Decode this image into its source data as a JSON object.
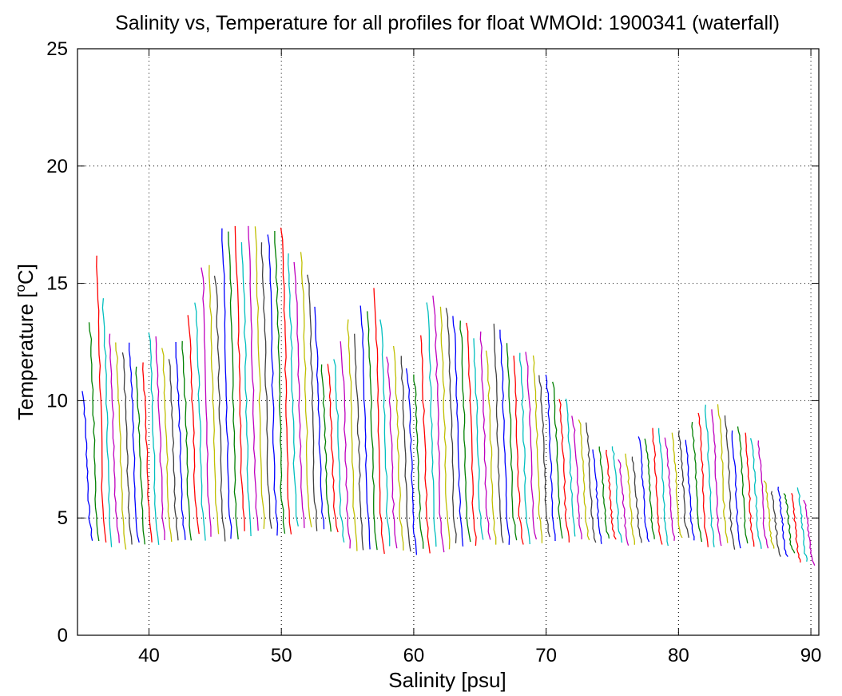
{
  "chart_data": {
    "type": "line",
    "title": "Salinity vs, Temperature for all profiles for float WMOId: 1900341 (waterfall)",
    "xlabel": "Salinity [psu]",
    "ylabel": "Temperature [",
    "ylabel_sup": "o",
    "ylabel_unit": "C]",
    "xlim": [
      34.6,
      90.6
    ],
    "ylim": [
      0,
      25
    ],
    "xticks": [
      40,
      50,
      60,
      70,
      80,
      90
    ],
    "yticks": [
      0,
      5,
      10,
      15,
      20,
      25
    ],
    "xtick_labels": [
      "40",
      "50",
      "60",
      "70",
      "80",
      "90"
    ],
    "ytick_labels": [
      "0",
      "5",
      "10",
      "15",
      "20",
      "25"
    ],
    "grid": true,
    "grid_style": "dotted",
    "series_colors": [
      "#0000ff",
      "#008000",
      "#ff0000",
      "#00bfbf",
      "#bf00bf",
      "#bfbf00",
      "#404040"
    ],
    "waterfall": {
      "first_profile_salinity": 35.0,
      "last_profile_salinity": 89.5,
      "profile_spacing": 0.5,
      "surface_temperature_envelope": [
        [
          35.0,
          11.0
        ],
        [
          36.0,
          17.0
        ],
        [
          37.0,
          13.5
        ],
        [
          38.0,
          13.0
        ],
        [
          39.0,
          12.0
        ],
        [
          40.0,
          13.0
        ],
        [
          41.0,
          13.0
        ],
        [
          42.0,
          12.5
        ],
        [
          43.0,
          14.0
        ],
        [
          44.0,
          16.5
        ],
        [
          45.0,
          16.5
        ],
        [
          46.0,
          18.2
        ],
        [
          47.0,
          17.5
        ],
        [
          48.0,
          17.5
        ],
        [
          49.0,
          17.5
        ],
        [
          50.0,
          17.5
        ],
        [
          51.0,
          17.0
        ],
        [
          52.0,
          16.0
        ],
        [
          53.0,
          12.5
        ],
        [
          54.0,
          12.0
        ],
        [
          55.0,
          13.5
        ],
        [
          56.0,
          14.5
        ],
        [
          57.0,
          15.5
        ],
        [
          58.0,
          12.5
        ],
        [
          59.0,
          12.5
        ],
        [
          60.0,
          12.0
        ],
        [
          61.0,
          15.0
        ],
        [
          62.0,
          15.0
        ],
        [
          63.0,
          14.0
        ],
        [
          64.0,
          13.5
        ],
        [
          65.0,
          13.0
        ],
        [
          66.0,
          13.3
        ],
        [
          67.0,
          13.2
        ],
        [
          68.0,
          13.0
        ],
        [
          69.0,
          12.5
        ],
        [
          70.0,
          12.0
        ],
        [
          71.0,
          11.0
        ],
        [
          72.0,
          9.8
        ],
        [
          73.0,
          9.3
        ],
        [
          74.0,
          8.8
        ],
        [
          75.0,
          8.5
        ],
        [
          76.0,
          8.5
        ],
        [
          77.0,
          8.5
        ],
        [
          78.0,
          9.0
        ],
        [
          79.0,
          9.3
        ],
        [
          80.0,
          9.5
        ],
        [
          81.0,
          9.5
        ],
        [
          82.0,
          10.0
        ],
        [
          83.0,
          10.0
        ],
        [
          84.0,
          9.5
        ],
        [
          85.0,
          9.3
        ],
        [
          86.0,
          8.5
        ],
        [
          87.0,
          7.0
        ],
        [
          88.0,
          6.8
        ],
        [
          89.0,
          6.8
        ],
        [
          89.5,
          6.5
        ]
      ],
      "bottom_temperature_envelope": [
        [
          35.0,
          3.8
        ],
        [
          38.0,
          3.5
        ],
        [
          40.0,
          3.8
        ],
        [
          45.0,
          4.0
        ],
        [
          50.0,
          4.3
        ],
        [
          53.0,
          4.2
        ],
        [
          55.0,
          3.5
        ],
        [
          60.0,
          3.3
        ],
        [
          65.0,
          3.8
        ],
        [
          70.0,
          3.9
        ],
        [
          75.0,
          3.8
        ],
        [
          80.0,
          3.8
        ],
        [
          85.0,
          3.5
        ],
        [
          88.0,
          3.2
        ],
        [
          89.5,
          2.8
        ]
      ]
    }
  }
}
